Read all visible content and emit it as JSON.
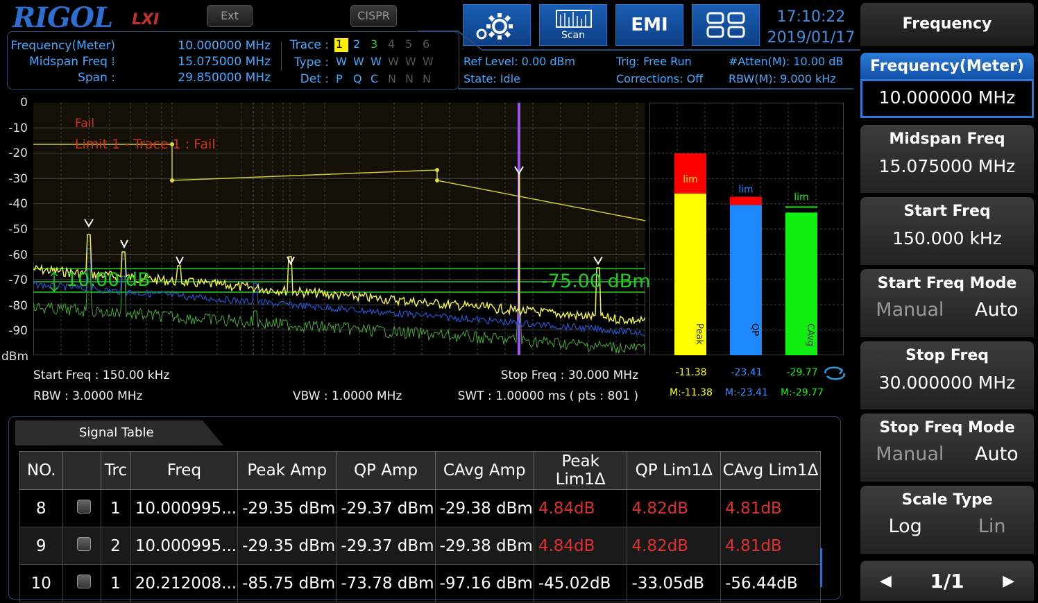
{
  "header": {
    "brand": "RIGOL",
    "lxi": "LXI",
    "ext_button": "Ext",
    "cispr_button": "CISPR",
    "scan_label": "Scan",
    "emi_label": "EMI",
    "time": "17:10:22",
    "date": "2019/01/17"
  },
  "info": {
    "freq_meter_label": "Frequency(Meter) :",
    "freq_meter_value": "10.000000 MHz",
    "midspan_label": "Midspan Freq :",
    "midspan_value": "15.075000 MHz",
    "span_label": "Span :",
    "span_value": "29.850000 MHz",
    "trace_label": "Trace :",
    "type_label": "Type :",
    "det_label": "Det :",
    "traces": [
      "1",
      "2",
      "3",
      "4",
      "5",
      "6"
    ],
    "types": [
      "W",
      "W",
      "W",
      "W",
      "W",
      "W"
    ],
    "dets": [
      "P",
      "Q",
      "C",
      "N",
      "N",
      "N"
    ],
    "ref_level": "Ref Level: 0.00 dBm",
    "state": "State: Idle",
    "trig": "Trig: Free Run",
    "corrections": "Corrections: Off",
    "atten": "#Atten(M): 10.00 dB",
    "rbw_m": "RBW(M): 9.000 kHz"
  },
  "plot": {
    "y_ticks": [
      "0",
      "-10",
      "-20",
      "-30",
      "-40",
      "-50",
      "-60",
      "-70",
      "-80",
      "-90",
      "dBm"
    ],
    "fail_text": "Fail",
    "limit_text": "Limit 1 - Trace 1 : Fail",
    "delta_text": "10.00 dB",
    "threshold_text": "-75.00 dBm",
    "start_freq": "Start Freq : 150.00 kHz",
    "rbw": "RBW : 3.0000 MHz",
    "vbw": "VBW : 1.0000 MHz",
    "stop_freq": "Stop Freq : 30.000 MHz",
    "swt": "SWT : 1.00000 ms ( pts : 801 )"
  },
  "meters": [
    {
      "name": "Peak",
      "value": "-11.38",
      "max": "M:-11.38",
      "color": "#ffff00",
      "level": 0.64,
      "lim_color": "#ff0000",
      "lim": "lim"
    },
    {
      "name": "QP",
      "value": "-23.41",
      "max": "M:-23.41",
      "color": "#1e88ff",
      "level": 0.595,
      "lim_color": "#ff0000",
      "lim": "lim"
    },
    {
      "name": "CAvg",
      "value": "-29.77",
      "max": "M:-29.77",
      "color": "#11ee11",
      "level": 0.565,
      "lim_color": "#11ee11",
      "lim": "lim"
    }
  ],
  "table": {
    "title": "Signal Table",
    "headers": [
      "NO.",
      "",
      "Trc",
      "Freq",
      "Peak Amp",
      "QP Amp",
      "CAvg Amp",
      "Peak Lim1Δ",
      "QP Lim1Δ",
      "CAvg Lim1Δ"
    ],
    "rows": [
      {
        "no": "8",
        "trc": "1",
        "freq": "10.000995...",
        "peak": "-29.35 dBm",
        "qp": "-29.37 dBm",
        "cavg": "-29.38 dBm",
        "pl": "4.84dB",
        "ql": "4.82dB",
        "cl": "4.81dB"
      },
      {
        "no": "9",
        "trc": "2",
        "freq": "10.000995...",
        "peak": "-29.35 dBm",
        "qp": "-29.37 dBm",
        "cavg": "-29.38 dBm",
        "pl": "4.84dB",
        "ql": "4.82dB",
        "cl": "4.81dB"
      },
      {
        "no": "10",
        "trc": "1",
        "freq": "20.212008...",
        "peak": "-85.75 dBm",
        "qp": "-73.78 dBm",
        "cavg": "-97.16 dBm",
        "pl": "-45.02dB",
        "ql": "-33.05dB",
        "cl": "-56.44dB"
      }
    ]
  },
  "menu": {
    "title": "Frequency",
    "freq_meter": {
      "label": "Frequency(Meter)",
      "value": "10.000000 MHz"
    },
    "midspan": {
      "label": "Midspan Freq",
      "value": "15.075000 MHz"
    },
    "start": {
      "label": "Start Freq",
      "value": "150.000 kHz"
    },
    "start_mode": {
      "label": "Start Freq Mode",
      "a": "Manual",
      "b": "Auto"
    },
    "stop": {
      "label": "Stop Freq",
      "value": "30.000000 MHz"
    },
    "stop_mode": {
      "label": "Stop Freq Mode",
      "a": "Manual",
      "b": "Auto"
    },
    "scale": {
      "label": "Scale Type",
      "a": "Log",
      "b": "Lin"
    },
    "page": "1/1"
  }
}
